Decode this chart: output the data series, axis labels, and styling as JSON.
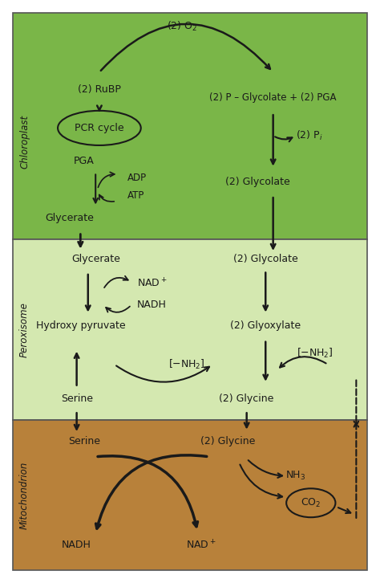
{
  "bg_chloroplast": "#7ab648",
  "bg_peroxisome": "#d4e8b0",
  "bg_mitochondrion": "#b8813a",
  "label_chloroplast": "Chloroplast",
  "label_peroxisome": "Peroxisome",
  "label_mitochondrion": "Mitochondrion",
  "text_color": "#1a1a1a",
  "arrow_color": "#1a1a1a",
  "fig_bg": "#ffffff",
  "border_color": "#555555"
}
